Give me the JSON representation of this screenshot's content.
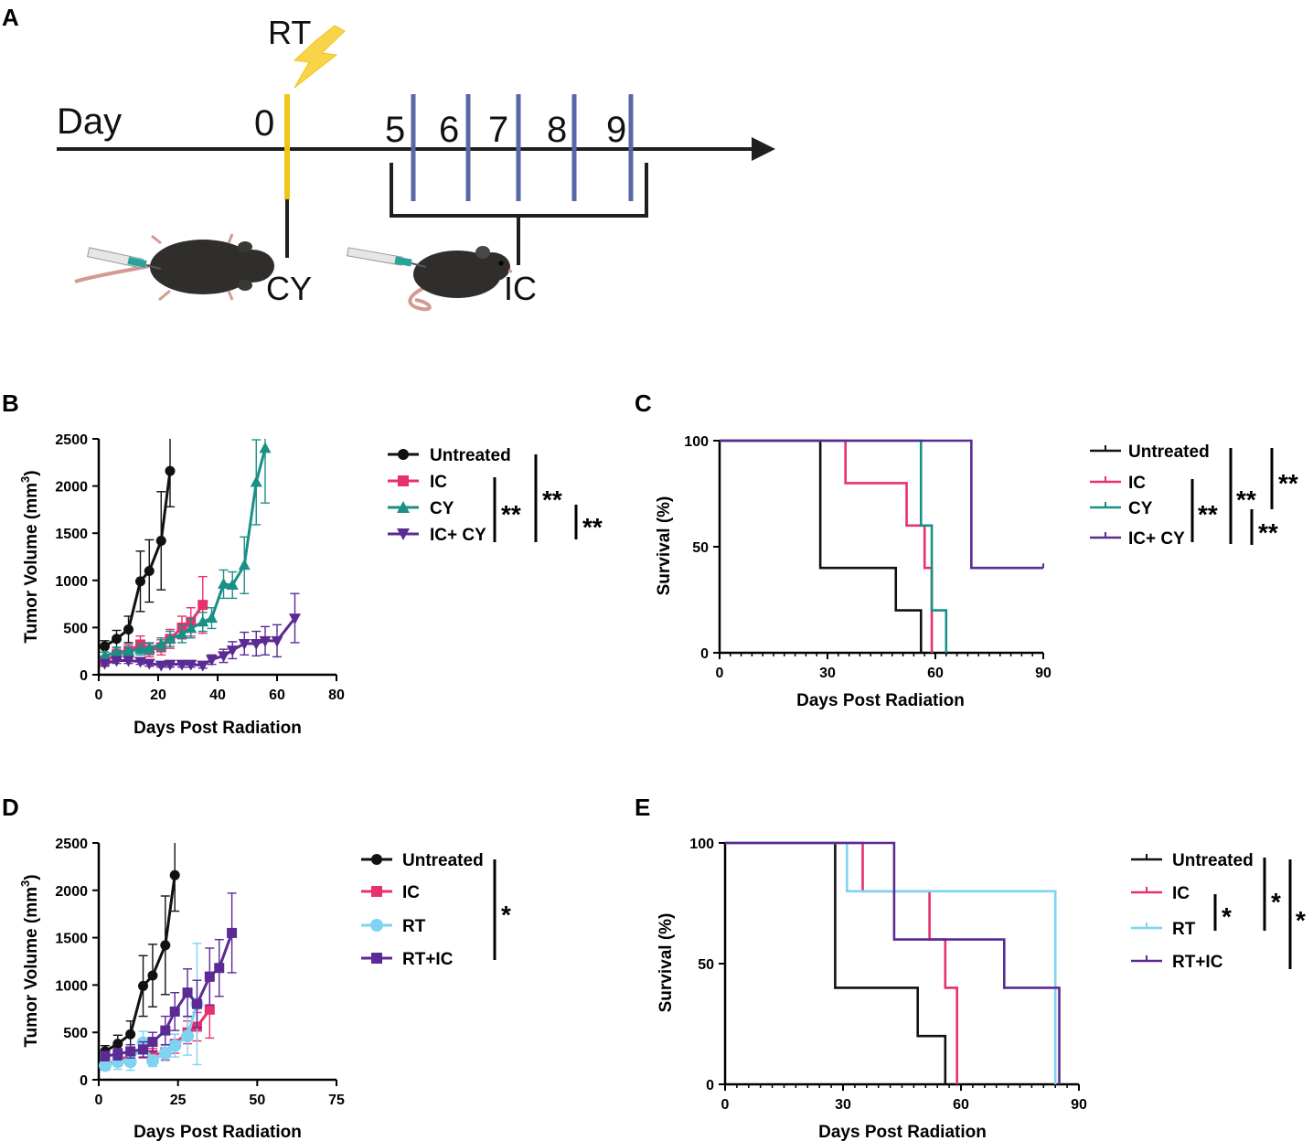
{
  "colors": {
    "black": "#111111",
    "pink": "#e8306f",
    "teal": "#1a8f87",
    "purple": "#5b2a93",
    "lightblue": "#7fd3f2",
    "timeline_yellow": "#f0c419",
    "timeline_blue": "#5a67a8",
    "lightning": "#f7d44a",
    "mouse": "#2f2e2c",
    "tail": "#d39a92"
  },
  "panel_a": {
    "letter": "A",
    "rt_label": "RT",
    "day_label": "Day",
    "day0": "0",
    "days": [
      "5",
      "6",
      "7",
      "8",
      "9"
    ],
    "cy_label": "CY",
    "ic_label": "IC"
  },
  "chart_data": [
    {
      "id": "B",
      "type": "line",
      "panel_letter": "B",
      "xlabel": "Days Post Radiation",
      "ylabel": "Tumor Volume (mm³)",
      "ylabel_main": "Tumor Volume (mm",
      "ylabel_sup": "3",
      "ylabel_end": ")",
      "xlim": [
        0,
        80
      ],
      "ylim": [
        0,
        2500
      ],
      "xticks": [
        0,
        20,
        40,
        60,
        80
      ],
      "yticks": [
        0,
        500,
        1000,
        1500,
        2000,
        2500
      ],
      "legend": [
        "Untreated",
        "IC",
        "CY",
        "IC+ CY"
      ],
      "significance": [
        "**",
        "**",
        "**"
      ],
      "series": [
        {
          "name": "Untreated",
          "color": "black",
          "marker": "circle",
          "x": [
            2,
            6,
            10,
            14,
            17,
            21,
            24
          ],
          "y": [
            300,
            380,
            480,
            990,
            1100,
            1420,
            2160
          ],
          "err": [
            60,
            90,
            140,
            320,
            330,
            520,
            380
          ]
        },
        {
          "name": "IC",
          "color": "pink",
          "marker": "square",
          "x": [
            2,
            6,
            10,
            14,
            17,
            21,
            24,
            28,
            31,
            35
          ],
          "y": [
            150,
            210,
            250,
            320,
            260,
            290,
            380,
            500,
            560,
            740
          ],
          "err": [
            40,
            60,
            70,
            90,
            70,
            80,
            100,
            120,
            150,
            300
          ]
        },
        {
          "name": "CY",
          "color": "teal",
          "marker": "triangle",
          "x": [
            2,
            6,
            10,
            14,
            17,
            21,
            24,
            28,
            31,
            35,
            38,
            42,
            45,
            49,
            53,
            56
          ],
          "y": [
            200,
            240,
            250,
            270,
            280,
            320,
            380,
            430,
            490,
            560,
            600,
            960,
            950,
            1160,
            2040,
            2400
          ],
          "err": [
            40,
            50,
            50,
            60,
            60,
            70,
            80,
            90,
            100,
            100,
            110,
            150,
            140,
            300,
            450,
            580
          ]
        },
        {
          "name": "IC+ CY",
          "color": "purple",
          "marker": "triangle-down",
          "x": [
            2,
            6,
            10,
            14,
            17,
            21,
            24,
            28,
            31,
            35,
            38,
            42,
            45,
            49,
            53,
            56,
            60,
            66
          ],
          "y": [
            120,
            150,
            150,
            140,
            120,
            100,
            110,
            110,
            110,
            100,
            160,
            200,
            260,
            330,
            330,
            360,
            360,
            600
          ],
          "err": [
            30,
            30,
            30,
            30,
            30,
            20,
            30,
            30,
            30,
            30,
            50,
            70,
            90,
            120,
            130,
            150,
            170,
            260
          ]
        }
      ]
    },
    {
      "id": "C",
      "type": "line",
      "panel_letter": "C",
      "xlabel": "Days Post Radiation",
      "ylabel": "Survival (%)",
      "xlim": [
        0,
        90
      ],
      "ylim": [
        0,
        100
      ],
      "xticks": [
        0,
        30,
        60,
        90
      ],
      "yticks": [
        0,
        50,
        100
      ],
      "legend": [
        "Untreated",
        "IC",
        "CY",
        "IC+ CY"
      ],
      "significance": [
        "**",
        "**",
        "**",
        "**"
      ],
      "series": [
        {
          "name": "Untreated",
          "color": "black",
          "steps": [
            [
              0,
              100
            ],
            [
              28,
              40
            ],
            [
              49,
              20
            ],
            [
              56,
              0
            ]
          ],
          "end": 56
        },
        {
          "name": "IC",
          "color": "pink",
          "steps": [
            [
              0,
              100
            ],
            [
              35,
              80
            ],
            [
              52,
              60
            ],
            [
              57,
              40
            ],
            [
              59,
              0
            ]
          ],
          "end": 59
        },
        {
          "name": "CY",
          "color": "teal",
          "steps": [
            [
              0,
              100
            ],
            [
              56,
              60
            ],
            [
              59,
              20
            ],
            [
              63,
              0
            ]
          ],
          "end": 63
        },
        {
          "name": "IC+ CY",
          "color": "purple",
          "steps": [
            [
              0,
              100
            ],
            [
              70,
              40
            ]
          ],
          "end": 90
        }
      ]
    },
    {
      "id": "D",
      "type": "line",
      "panel_letter": "D",
      "xlabel": "Days Post Radiation",
      "ylabel": "Tumor Volume (mm³)",
      "ylabel_main": "Tumor Volume (mm",
      "ylabel_sup": "3",
      "ylabel_end": ")",
      "xlim": [
        0,
        75
      ],
      "ylim": [
        0,
        2500
      ],
      "xticks": [
        0,
        25,
        50,
        75
      ],
      "yticks": [
        0,
        500,
        1000,
        1500,
        2000,
        2500
      ],
      "legend": [
        "Untreated",
        "IC",
        "RT",
        "RT+IC"
      ],
      "significance": [
        "*"
      ],
      "series": [
        {
          "name": "Untreated",
          "color": "black",
          "marker": "circle",
          "x": [
            2,
            6,
            10,
            14,
            17,
            21,
            24
          ],
          "y": [
            300,
            380,
            480,
            990,
            1100,
            1420,
            2160
          ],
          "err": [
            60,
            90,
            140,
            320,
            330,
            520,
            380
          ]
        },
        {
          "name": "IC",
          "color": "pink",
          "marker": "square",
          "x": [
            2,
            6,
            10,
            14,
            17,
            21,
            24,
            28,
            31,
            35
          ],
          "y": [
            150,
            210,
            250,
            320,
            260,
            290,
            380,
            500,
            560,
            740
          ],
          "err": [
            40,
            60,
            70,
            90,
            70,
            80,
            100,
            120,
            150,
            300
          ]
        },
        {
          "name": "RT",
          "color": "lightblue",
          "marker": "circle",
          "x": [
            2,
            6,
            10,
            14,
            17,
            21,
            24,
            28,
            31
          ],
          "y": [
            150,
            190,
            190,
            390,
            200,
            280,
            360,
            460,
            800
          ],
          "err": [
            50,
            80,
            90,
            120,
            60,
            80,
            120,
            200,
            640
          ]
        },
        {
          "name": "RT+IC",
          "color": "purple",
          "marker": "square",
          "x": [
            2,
            6,
            10,
            14,
            17,
            21,
            24,
            28,
            31,
            35,
            38,
            42
          ],
          "y": [
            250,
            270,
            300,
            320,
            400,
            520,
            720,
            920,
            800,
            1090,
            1180,
            1550
          ],
          "err": [
            50,
            60,
            70,
            80,
            100,
            150,
            200,
            250,
            250,
            300,
            300,
            420
          ]
        }
      ]
    },
    {
      "id": "E",
      "type": "line",
      "panel_letter": "E",
      "xlabel": "Days Post Radiation",
      "ylabel": "Survival (%)",
      "xlim": [
        0,
        90
      ],
      "ylim": [
        0,
        100
      ],
      "xticks": [
        0,
        30,
        60,
        90
      ],
      "yticks": [
        0,
        50,
        100
      ],
      "legend": [
        "Untreated",
        "IC",
        "RT",
        "RT+IC"
      ],
      "significance": [
        "*",
        "*",
        "*"
      ],
      "series": [
        {
          "name": "Untreated",
          "color": "black",
          "steps": [
            [
              0,
              100
            ],
            [
              28,
              40
            ],
            [
              49,
              20
            ],
            [
              56,
              0
            ]
          ],
          "end": 56
        },
        {
          "name": "IC",
          "color": "pink",
          "steps": [
            [
              0,
              100
            ],
            [
              35,
              80
            ],
            [
              52,
              60
            ],
            [
              56,
              40
            ],
            [
              59,
              0
            ]
          ],
          "end": 59
        },
        {
          "name": "RT",
          "color": "lightblue",
          "steps": [
            [
              0,
              100
            ],
            [
              31,
              80
            ],
            [
              84,
              0
            ]
          ],
          "end": 84
        },
        {
          "name": "RT+IC",
          "color": "purple",
          "steps": [
            [
              0,
              100
            ],
            [
              43,
              60
            ],
            [
              71,
              40
            ],
            [
              85,
              0
            ]
          ],
          "end": 85
        }
      ]
    }
  ]
}
